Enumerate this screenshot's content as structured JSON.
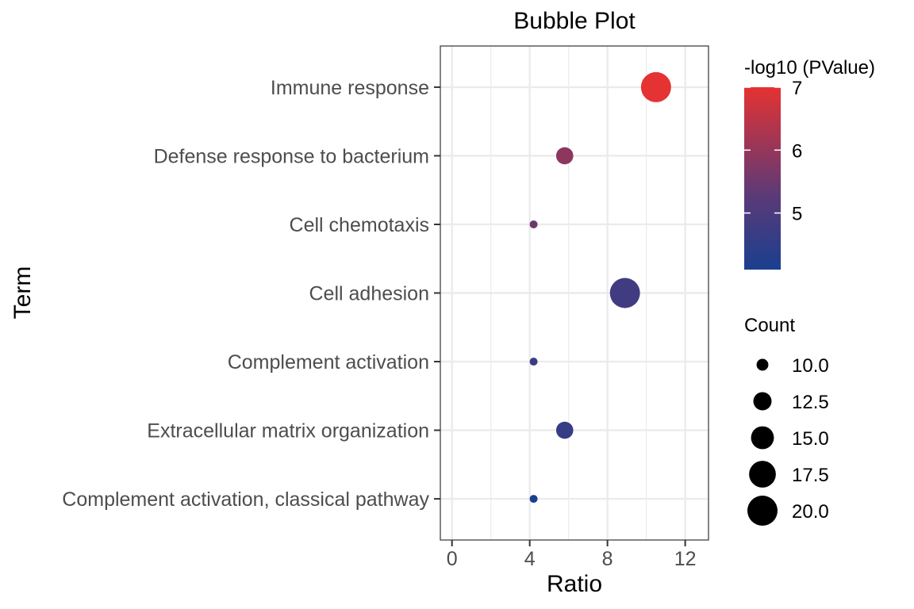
{
  "chart_data": {
    "type": "scatter",
    "title": "Bubble Plot",
    "xlabel": "Ratio",
    "ylabel": "Term",
    "xlim": [
      -0.6,
      13.2
    ],
    "x_ticks": [
      0,
      4,
      8,
      12
    ],
    "grid": true,
    "categories": [
      "Immune response",
      "Defense response to bacterium",
      "Cell chemotaxis",
      "Cell adhesion",
      "Complement activation",
      "Extracellular matrix organization",
      "Complement activation, classical pathway"
    ],
    "points": [
      {
        "term": "Immune response",
        "ratio": 10.5,
        "count": 20,
        "neglog10p": 7.0
      },
      {
        "term": "Defense response to bacterium",
        "ratio": 5.8,
        "count": 12,
        "neglog10p": 5.9
      },
      {
        "term": "Cell chemotaxis",
        "ratio": 4.2,
        "count": 9,
        "neglog10p": 5.5
      },
      {
        "term": "Cell adhesion",
        "ratio": 8.9,
        "count": 20,
        "neglog10p": 4.8
      },
      {
        "term": "Complement activation",
        "ratio": 4.2,
        "count": 9,
        "neglog10p": 4.7
      },
      {
        "term": "Extracellular matrix organization",
        "ratio": 5.8,
        "count": 12,
        "neglog10p": 4.6
      },
      {
        "term": "Complement activation, classical pathway",
        "ratio": 4.2,
        "count": 9,
        "neglog10p": 4.1
      }
    ],
    "color_legend": {
      "title": "-log10 (PValue)",
      "low": 4.1,
      "high": 7.0,
      "ticks": [
        5,
        6,
        7
      ],
      "low_color": "#1a3f8f",
      "mid_color": "#5a3a78",
      "high_color": "#e53232"
    },
    "size_legend": {
      "title": "Count",
      "values": [
        10.0,
        12.5,
        15.0,
        17.5,
        20.0
      ],
      "labels": [
        "10.0",
        "12.5",
        "15.0",
        "17.5",
        "20.0"
      ]
    },
    "legend_position": "right"
  }
}
